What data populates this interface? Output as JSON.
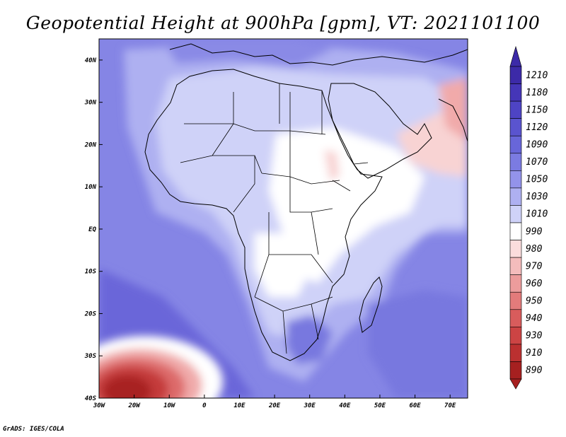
{
  "title": "Geopotential Height at 900hPa [gpm], VT: 2021101100",
  "credit": "GrADS: IGES/COLA",
  "map": {
    "variable": "Geopotential Height",
    "level": "900hPa",
    "units": "gpm",
    "valid_time": "2021101100",
    "lon_range": [
      -30,
      75
    ],
    "lat_range": [
      -40,
      45
    ],
    "lon_ticks": [
      {
        "value": -30,
        "label": "30W"
      },
      {
        "value": -20,
        "label": "20W"
      },
      {
        "value": -10,
        "label": "10W"
      },
      {
        "value": 0,
        "label": "0"
      },
      {
        "value": 10,
        "label": "10E"
      },
      {
        "value": 20,
        "label": "20E"
      },
      {
        "value": 30,
        "label": "30E"
      },
      {
        "value": 40,
        "label": "40E"
      },
      {
        "value": 50,
        "label": "50E"
      },
      {
        "value": 60,
        "label": "60E"
      },
      {
        "value": 70,
        "label": "70E"
      }
    ],
    "lat_ticks": [
      {
        "value": 40,
        "label": "40N"
      },
      {
        "value": 30,
        "label": "30N"
      },
      {
        "value": 20,
        "label": "20N"
      },
      {
        "value": 10,
        "label": "10N"
      },
      {
        "value": 0,
        "label": "EQ"
      },
      {
        "value": -10,
        "label": "10S"
      },
      {
        "value": -20,
        "label": "20S"
      },
      {
        "value": -30,
        "label": "30S"
      },
      {
        "value": -40,
        "label": "40S"
      }
    ]
  },
  "colorbar": {
    "levels": [
      {
        "label": "1210",
        "color": "#3c2aa8"
      },
      {
        "label": "1180",
        "color": "#4536b8"
      },
      {
        "label": "1150",
        "color": "#4e44c4"
      },
      {
        "label": "1120",
        "color": "#5a54cf"
      },
      {
        "label": "1090",
        "color": "#6866d9"
      },
      {
        "label": "1070",
        "color": "#7b7be2"
      },
      {
        "label": "1050",
        "color": "#9393ea"
      },
      {
        "label": "1030",
        "color": "#aeb0f1"
      },
      {
        "label": "1010",
        "color": "#cfd2f8"
      },
      {
        "label": "990",
        "color": "#ffffff"
      },
      {
        "label": "980",
        "color": "#fbdcdc"
      },
      {
        "label": "970",
        "color": "#f4bcbc"
      },
      {
        "label": "960",
        "color": "#ec9c9c"
      },
      {
        "label": "950",
        "color": "#e37b7b"
      },
      {
        "label": "940",
        "color": "#d85c5c"
      },
      {
        "label": "930",
        "color": "#cc4444"
      },
      {
        "label": "910",
        "color": "#bb3030"
      },
      {
        "label": "890",
        "color": "#a62020"
      }
    ]
  }
}
